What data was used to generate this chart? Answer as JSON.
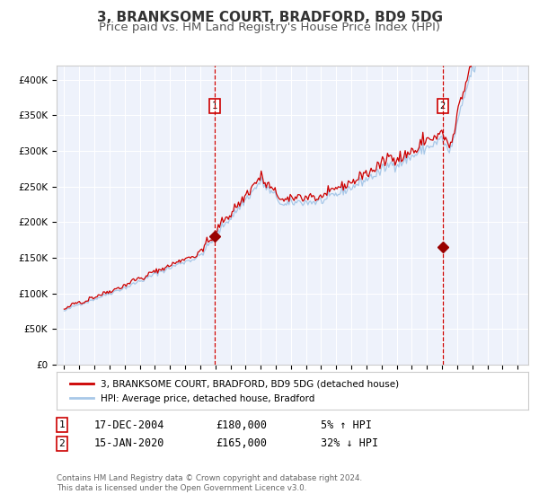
{
  "title": "3, BRANKSOME COURT, BRADFORD, BD9 5DG",
  "subtitle": "Price paid vs. HM Land Registry's House Price Index (HPI)",
  "ylim": [
    0,
    420000
  ],
  "yticks": [
    0,
    50000,
    100000,
    150000,
    200000,
    250000,
    300000,
    350000,
    400000
  ],
  "ytick_labels": [
    "£0",
    "£50K",
    "£100K",
    "£150K",
    "£200K",
    "£250K",
    "£300K",
    "£350K",
    "£400K"
  ],
  "hpi_color": "#a8c8e8",
  "price_color": "#cc0000",
  "marker_color": "#990000",
  "vline_color": "#cc0000",
  "background_color": "#ffffff",
  "plot_bg_color": "#eef2fb",
  "grid_color": "#ffffff",
  "legend_label_red": "3, BRANKSOME COURT, BRADFORD, BD9 5DG (detached house)",
  "legend_label_blue": "HPI: Average price, detached house, Bradford",
  "event1_year": 2004.96,
  "event1_price": 180000,
  "event2_year": 2020.04,
  "event2_price": 165000,
  "table_row1": [
    "1",
    "17-DEC-2004",
    "£180,000",
    "5% ↑ HPI"
  ],
  "table_row2": [
    "2",
    "15-JAN-2020",
    "£165,000",
    "32% ↓ HPI"
  ],
  "footnote": "Contains HM Land Registry data © Crown copyright and database right 2024.\nThis data is licensed under the Open Government Licence v3.0.",
  "title_fontsize": 11,
  "subtitle_fontsize": 9.5
}
